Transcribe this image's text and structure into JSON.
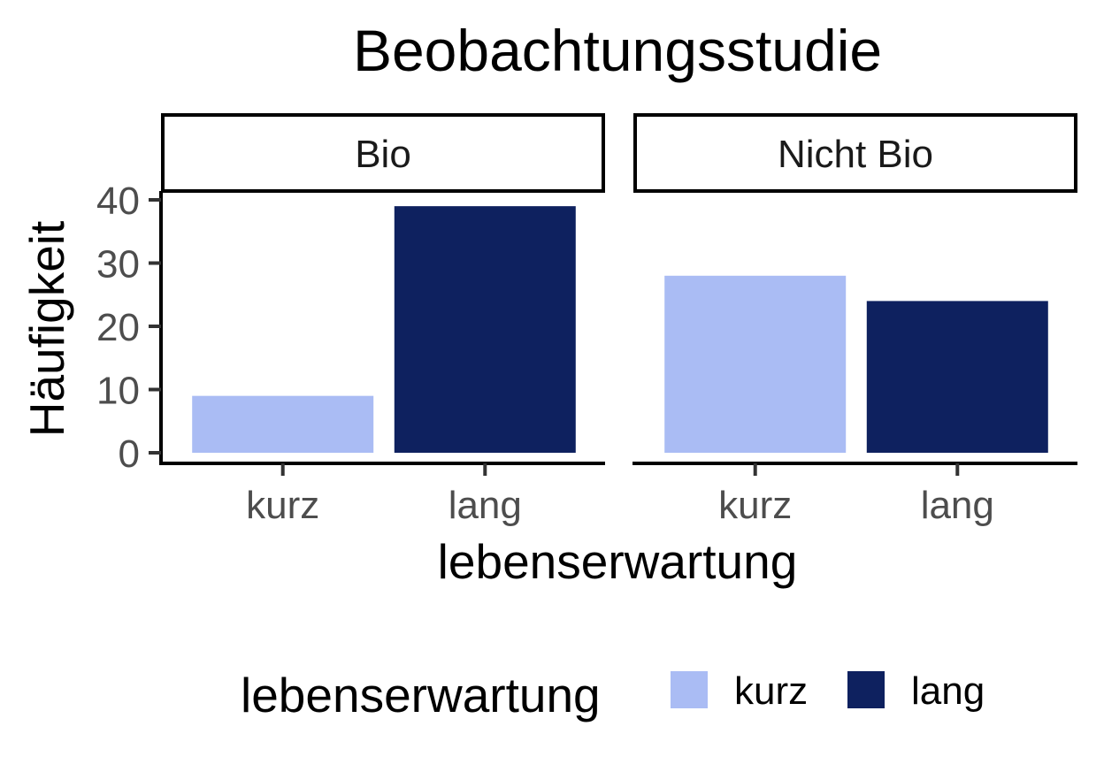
{
  "chart_data": {
    "type": "bar",
    "title": "Beobachtungsstudie",
    "xlabel": "lebenserwartung",
    "ylabel": "Häufigkeit",
    "ylim": [
      0,
      40
    ],
    "yticks": [
      0,
      10,
      20,
      30,
      40
    ],
    "categories": [
      "kurz",
      "lang"
    ],
    "facets": [
      {
        "label": "Bio",
        "values": [
          9,
          39
        ]
      },
      {
        "label": "Nicht Bio",
        "values": [
          28,
          24
        ]
      }
    ],
    "legend": {
      "title": "lebenserwartung",
      "position": "bottom",
      "entries": [
        {
          "label": "kurz",
          "color": "#aabcf4"
        },
        {
          "label": "lang",
          "color": "#0e215f"
        }
      ]
    },
    "grid": false
  }
}
